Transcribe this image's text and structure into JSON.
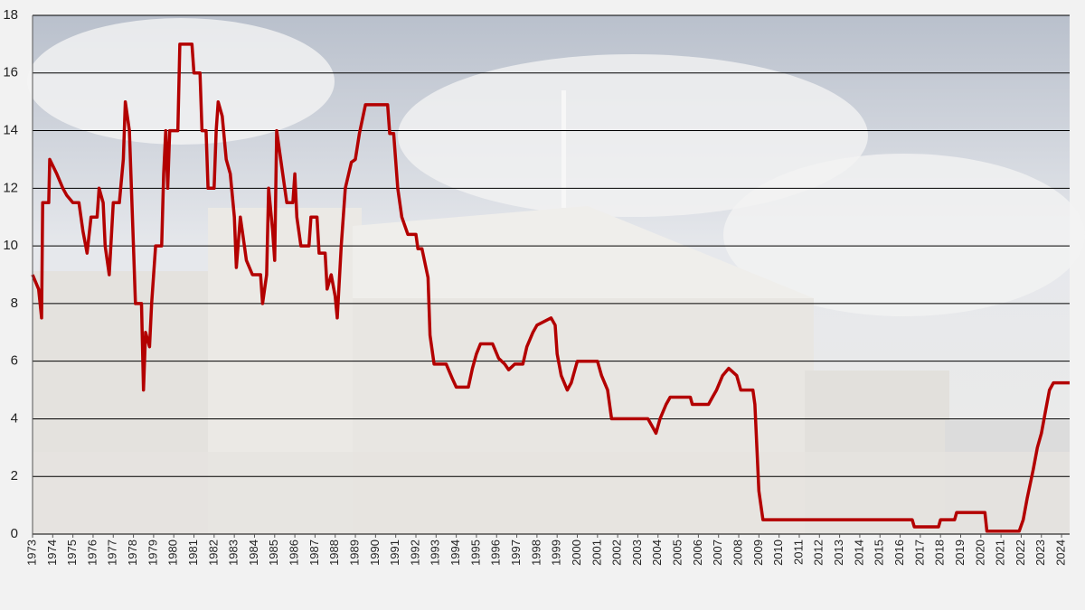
{
  "chart_data": {
    "type": "line",
    "x": [
      1973.0,
      1973.3,
      1973.45,
      1973.5,
      1973.8,
      1973.85,
      1974.2,
      1974.5,
      1974.7,
      1975.0,
      1975.3,
      1975.5,
      1975.7,
      1975.9,
      1976.2,
      1976.3,
      1976.5,
      1976.6,
      1976.8,
      1977.0,
      1977.3,
      1977.5,
      1977.6,
      1977.8,
      1978.0,
      1978.1,
      1978.4,
      1978.5,
      1978.6,
      1978.8,
      1978.9,
      1979.1,
      1979.4,
      1979.5,
      1979.6,
      1979.7,
      1979.8,
      1980.2,
      1980.3,
      1980.9,
      1981.0,
      1981.3,
      1981.4,
      1981.6,
      1981.7,
      1982.0,
      1982.1,
      1982.2,
      1982.4,
      1982.6,
      1982.8,
      1983.0,
      1983.1,
      1983.3,
      1983.5,
      1983.6,
      1983.9,
      1984.3,
      1984.4,
      1984.6,
      1984.7,
      1984.9,
      1985.0,
      1985.1,
      1985.4,
      1985.6,
      1985.9,
      1986.0,
      1986.1,
      1986.3,
      1986.7,
      1986.8,
      1987.1,
      1987.2,
      1987.5,
      1987.6,
      1987.8,
      1988.0,
      1988.1,
      1988.3,
      1988.5,
      1988.8,
      1989.0,
      1989.2,
      1989.5,
      1990.6,
      1990.7,
      1990.9,
      1991.1,
      1991.3,
      1991.6,
      1992.0,
      1992.1,
      1992.3,
      1992.6,
      1992.7,
      1992.9,
      1993.5,
      1993.8,
      1994.0,
      1994.6,
      1994.8,
      1995.0,
      1995.2,
      1995.8,
      1996.1,
      1996.4,
      1996.6,
      1996.9,
      1997.3,
      1997.5,
      1997.8,
      1998.0,
      1998.7,
      1998.9,
      1999.0,
      1999.2,
      1999.5,
      1999.7,
      2000.0,
      2001.0,
      2001.2,
      2001.5,
      2001.7,
      2003.5,
      2003.7,
      2003.9,
      2004.1,
      2004.4,
      2004.6,
      2005.6,
      2005.7,
      2006.5,
      2006.7,
      2006.9,
      2007.2,
      2007.5,
      2007.9,
      2008.1,
      2008.7,
      2008.8,
      2008.9,
      2009.0,
      2009.2,
      2016.6,
      2016.7,
      2017.9,
      2018.0,
      2018.7,
      2018.8,
      2020.2,
      2020.3,
      2021.9,
      2022.1,
      2022.3,
      2022.6,
      2022.8,
      2023.0,
      2023.2,
      2023.4,
      2023.6,
      2024.4
    ],
    "values": [
      9,
      8.5,
      7.5,
      11.5,
      11.5,
      13,
      12.5,
      12,
      11.75,
      11.5,
      11.5,
      10.5,
      9.75,
      11,
      11,
      12,
      11.5,
      10,
      9,
      11.5,
      11.5,
      13,
      15,
      14,
      10,
      8,
      8,
      5,
      7,
      6.5,
      8,
      10,
      10,
      12.5,
      14,
      12,
      14,
      14,
      17,
      17,
      16,
      16,
      14,
      14,
      12,
      12,
      14,
      15,
      14.5,
      13,
      12.5,
      11,
      9.25,
      11,
      10,
      9.5,
      9,
      9,
      8,
      9,
      12,
      10.5,
      9.5,
      14,
      12.5,
      11.5,
      11.5,
      12.5,
      11,
      10,
      10,
      11,
      11,
      9.75,
      9.75,
      8.5,
      9,
      8.25,
      7.5,
      10,
      12,
      12.9,
      13,
      13.9,
      14.9,
      14.9,
      13.9,
      13.9,
      12,
      11,
      10.4,
      10.4,
      9.9,
      9.9,
      8.9,
      6.9,
      5.9,
      5.9,
      5.4,
      5.1,
      5.1,
      5.75,
      6.25,
      6.6,
      6.6,
      6.1,
      5.9,
      5.7,
      5.9,
      5.9,
      6.5,
      7,
      7.25,
      7.5,
      7.25,
      6.25,
      5.5,
      5,
      5.25,
      6,
      6,
      5.5,
      5,
      4,
      4,
      3.75,
      3.5,
      4,
      4.5,
      4.75,
      4.75,
      4.5,
      4.5,
      4.75,
      5,
      5.5,
      5.75,
      5.5,
      5,
      5,
      4.5,
      3,
      1.5,
      0.5,
      0.5,
      0.25,
      0.25,
      0.5,
      0.5,
      0.75,
      0.75,
      0.1,
      0.1,
      0.5,
      1.25,
      2.25,
      3,
      3.5,
      4.25,
      5,
      5.25,
      5.25
    ],
    "color": "#b30000",
    "xlim": [
      1973,
      2024.4
    ],
    "xticks": [
      1973,
      1974,
      1975,
      1976,
      1977,
      1978,
      1979,
      1980,
      1981,
      1982,
      1983,
      1984,
      1985,
      1986,
      1987,
      1988,
      1989,
      1990,
      1991,
      1992,
      1993,
      1994,
      1995,
      1996,
      1997,
      1998,
      1999,
      2000,
      2001,
      2002,
      2003,
      2004,
      2005,
      2006,
      2007,
      2008,
      2009,
      2010,
      2011,
      2012,
      2013,
      2014,
      2015,
      2016,
      2017,
      2018,
      2019,
      2020,
      2021,
      2022,
      2023,
      2024
    ],
    "ylim": [
      0,
      18
    ],
    "yticks": [
      0,
      2,
      4,
      6,
      8,
      10,
      12,
      14,
      16,
      18
    ],
    "grid": true
  }
}
